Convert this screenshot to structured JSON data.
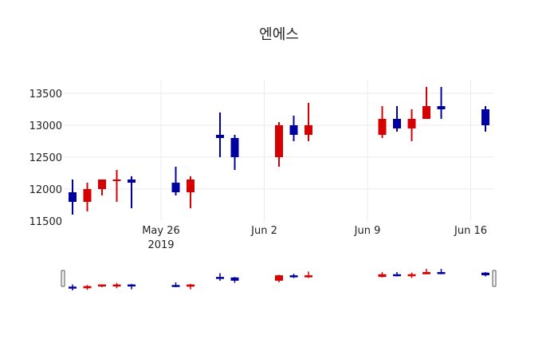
{
  "chart_data": {
    "type": "candlestick",
    "title": "엔에스",
    "xlabel": "",
    "ylabel": "",
    "ylim": [
      11500,
      13700
    ],
    "y_ticks": [
      11500,
      12000,
      12500,
      13000,
      13500
    ],
    "x_ticks": [
      {
        "date": "2019-05-26",
        "label": "May 26",
        "sublabel": "2019"
      },
      {
        "date": "2019-06-02",
        "label": "Jun 2",
        "sublabel": ""
      },
      {
        "date": "2019-06-09",
        "label": "Jun 9",
        "sublabel": ""
      },
      {
        "date": "2019-06-16",
        "label": "Jun 16",
        "sublabel": ""
      }
    ],
    "grid": true,
    "increasing_color": "#d60000",
    "decreasing_color": "#0000a0",
    "rangeslider": true,
    "candles": [
      {
        "date": "2019-05-20",
        "open": 11950,
        "high": 12150,
        "low": 11600,
        "close": 11800
      },
      {
        "date": "2019-05-21",
        "open": 11800,
        "high": 12100,
        "low": 11650,
        "close": 12000
      },
      {
        "date": "2019-05-22",
        "open": 12000,
        "high": 12150,
        "low": 11900,
        "close": 12150
      },
      {
        "date": "2019-05-23",
        "open": 12150,
        "high": 12300,
        "low": 11800,
        "close": 12150
      },
      {
        "date": "2019-05-24",
        "open": 12150,
        "high": 12200,
        "low": 11700,
        "close": 12100
      },
      {
        "date": "2019-05-27",
        "open": 12100,
        "high": 12350,
        "low": 11900,
        "close": 11950
      },
      {
        "date": "2019-05-28",
        "open": 11950,
        "high": 12200,
        "low": 11700,
        "close": 12150
      },
      {
        "date": "2019-05-30",
        "open": 12850,
        "high": 13200,
        "low": 12500,
        "close": 12800
      },
      {
        "date": "2019-05-31",
        "open": 12800,
        "high": 12850,
        "low": 12300,
        "close": 12500
      },
      {
        "date": "2019-06-03",
        "open": 12500,
        "high": 13050,
        "low": 12350,
        "close": 13000
      },
      {
        "date": "2019-06-04",
        "open": 13000,
        "high": 13150,
        "low": 12750,
        "close": 12850
      },
      {
        "date": "2019-06-05",
        "open": 12850,
        "high": 13350,
        "low": 12750,
        "close": 13000
      },
      {
        "date": "2019-06-10",
        "open": 12850,
        "high": 13300,
        "low": 12800,
        "close": 13100
      },
      {
        "date": "2019-06-11",
        "open": 13100,
        "high": 13300,
        "low": 12900,
        "close": 12950
      },
      {
        "date": "2019-06-12",
        "open": 12950,
        "high": 13250,
        "low": 12750,
        "close": 13100
      },
      {
        "date": "2019-06-13",
        "open": 13100,
        "high": 13600,
        "low": 13100,
        "close": 13300
      },
      {
        "date": "2019-06-14",
        "open": 13300,
        "high": 13600,
        "low": 13100,
        "close": 13250
      },
      {
        "date": "2019-06-17",
        "open": 13250,
        "high": 13300,
        "low": 12900,
        "close": 13000
      }
    ]
  }
}
